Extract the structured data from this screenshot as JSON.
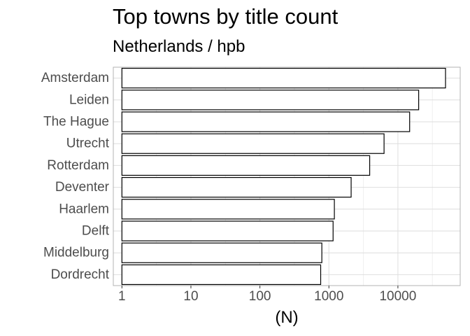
{
  "chart_data": {
    "type": "bar",
    "orientation": "horizontal",
    "title": "Top towns by title count",
    "subtitle": "Netherlands / hpb",
    "xlabel": "(N)",
    "ylabel": "",
    "x_scale": "log10",
    "xlim": [
      0.75,
      80000
    ],
    "x_ticks": [
      1,
      10,
      100,
      1000,
      10000
    ],
    "x_tick_labels": [
      "1",
      "10",
      "100",
      "1000",
      "10000"
    ],
    "grid": true,
    "legend": "none",
    "categories": [
      "Amsterdam",
      "Leiden",
      "The Hague",
      "Utrecht",
      "Rotterdam",
      "Deventer",
      "Haarlem",
      "Delft",
      "Middelburg",
      "Dordrecht"
    ],
    "values": [
      49000,
      20000,
      14800,
      6300,
      3900,
      2100,
      1200,
      1150,
      790,
      760
    ],
    "colors": {
      "bar_fill": "#ffffff",
      "bar_stroke": "#000000",
      "panel_border": "#b3b3b3",
      "grid_major": "#dedede",
      "grid_minor": "#efefef",
      "tick_text": "#4d4d4d"
    }
  }
}
